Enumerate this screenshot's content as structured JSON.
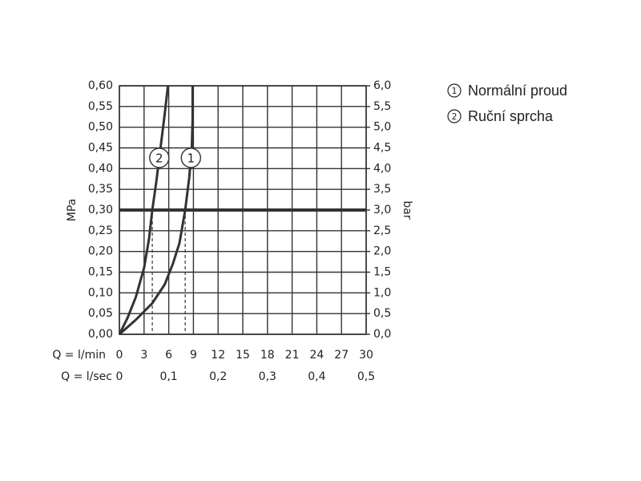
{
  "chart_data": {
    "type": "line",
    "ylabel": "MPa",
    "y2label": "bar",
    "xlabel": "Q = l/min",
    "x2label": "Q = l/sec",
    "xlim": [
      0,
      30
    ],
    "xticks": [
      0,
      3,
      6,
      9,
      12,
      15,
      18,
      21,
      24,
      27,
      30
    ],
    "x2lim": [
      0,
      0.5
    ],
    "x2ticks": [
      0,
      {
        "value": 0.1,
        "label": "0,1"
      },
      {
        "value": 0.2,
        "label": "0,2"
      },
      {
        "value": 0.3,
        "label": "0,3"
      },
      {
        "value": 0.4,
        "label": "0,4"
      },
      {
        "value": 0.5,
        "label": "0,5"
      }
    ],
    "ylim": [
      0,
      0.6
    ],
    "yticks": [
      {
        "value": 0,
        "label": "0,00"
      },
      {
        "value": 0.05,
        "label": "0,05"
      },
      {
        "value": 0.1,
        "label": "0,10"
      },
      {
        "value": 0.15,
        "label": "0,15"
      },
      {
        "value": 0.2,
        "label": "0,20"
      },
      {
        "value": 0.25,
        "label": "0,25"
      },
      {
        "value": 0.3,
        "label": "0,30"
      },
      {
        "value": 0.35,
        "label": "0,35"
      },
      {
        "value": 0.4,
        "label": "0,40"
      },
      {
        "value": 0.45,
        "label": "0,45"
      },
      {
        "value": 0.5,
        "label": "0,50"
      },
      {
        "value": 0.55,
        "label": "0,55"
      },
      {
        "value": 0.6,
        "label": "0,60"
      }
    ],
    "y2lim": [
      0,
      6
    ],
    "y2ticks": [
      {
        "value": 0,
        "label": "0,0"
      },
      {
        "value": 0.5,
        "label": "0,5"
      },
      {
        "value": 1,
        "label": "1,0"
      },
      {
        "value": 1.5,
        "label": "1,5"
      },
      {
        "value": 2,
        "label": "2,0"
      },
      {
        "value": 2.5,
        "label": "2,5"
      },
      {
        "value": 3,
        "label": "3,0"
      },
      {
        "value": 3.5,
        "label": "3,5"
      },
      {
        "value": 4,
        "label": "4,0"
      },
      {
        "value": 4.5,
        "label": "4,5"
      },
      {
        "value": 5,
        "label": "5,0"
      },
      {
        "value": 5.5,
        "label": "5,5"
      },
      {
        "value": 6,
        "label": "6,0"
      }
    ],
    "grid": true,
    "reference_line": 0.3,
    "drop_lines": [
      {
        "x": 8,
        "y": 0.3
      },
      {
        "x": 4,
        "y": 0.3
      }
    ],
    "series": [
      {
        "name": "Normální proud",
        "label": "1",
        "color": "#333333",
        "x": [
          0,
          2,
          4,
          5.5,
          6.5,
          7.3,
          8,
          8.5,
          8.8,
          8.9,
          8.9
        ],
        "values": [
          0,
          0.035,
          0.075,
          0.12,
          0.17,
          0.22,
          0.3,
          0.38,
          0.45,
          0.52,
          0.6
        ]
      },
      {
        "name": "Ruční sprcha",
        "label": "2",
        "color": "#333333",
        "x": [
          0,
          1,
          2,
          3,
          3.6,
          4,
          4.5,
          5,
          5.5,
          5.9
        ],
        "values": [
          0,
          0.04,
          0.09,
          0.16,
          0.23,
          0.3,
          0.37,
          0.45,
          0.53,
          0.6
        ]
      }
    ]
  }
}
